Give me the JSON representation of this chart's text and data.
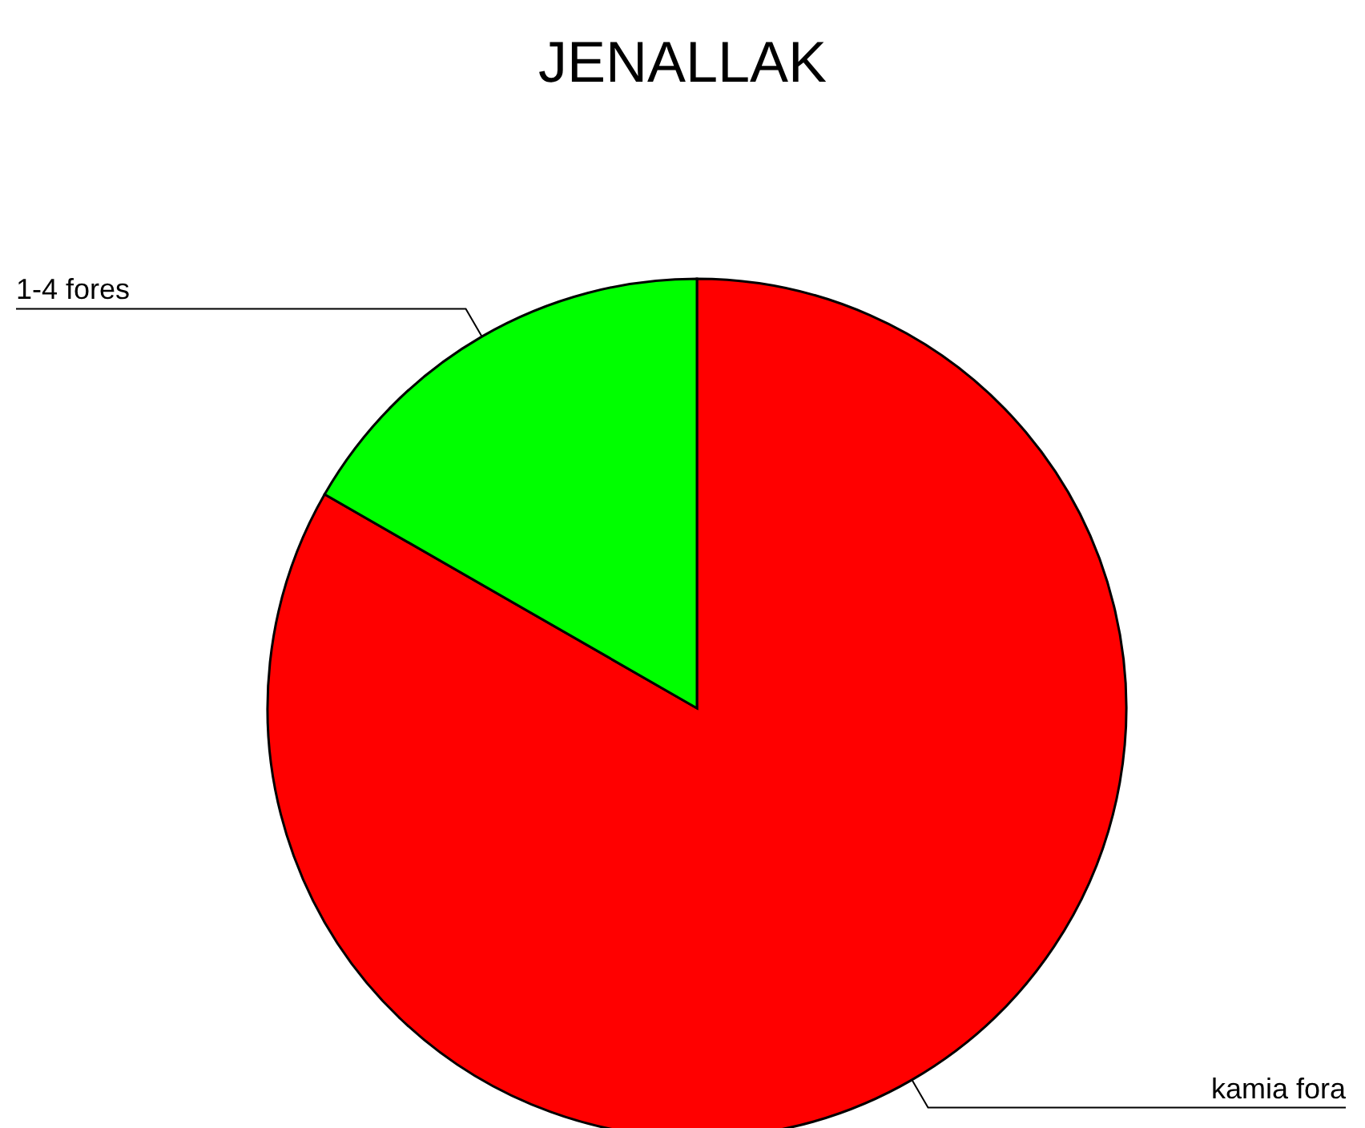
{
  "chart_data": {
    "type": "pie",
    "title": "JENALLAK",
    "categories": [
      "kamia fora",
      "1-4 fores"
    ],
    "values": [
      83.3,
      16.7
    ],
    "colors": [
      "#ff0000",
      "#00ff00"
    ]
  }
}
